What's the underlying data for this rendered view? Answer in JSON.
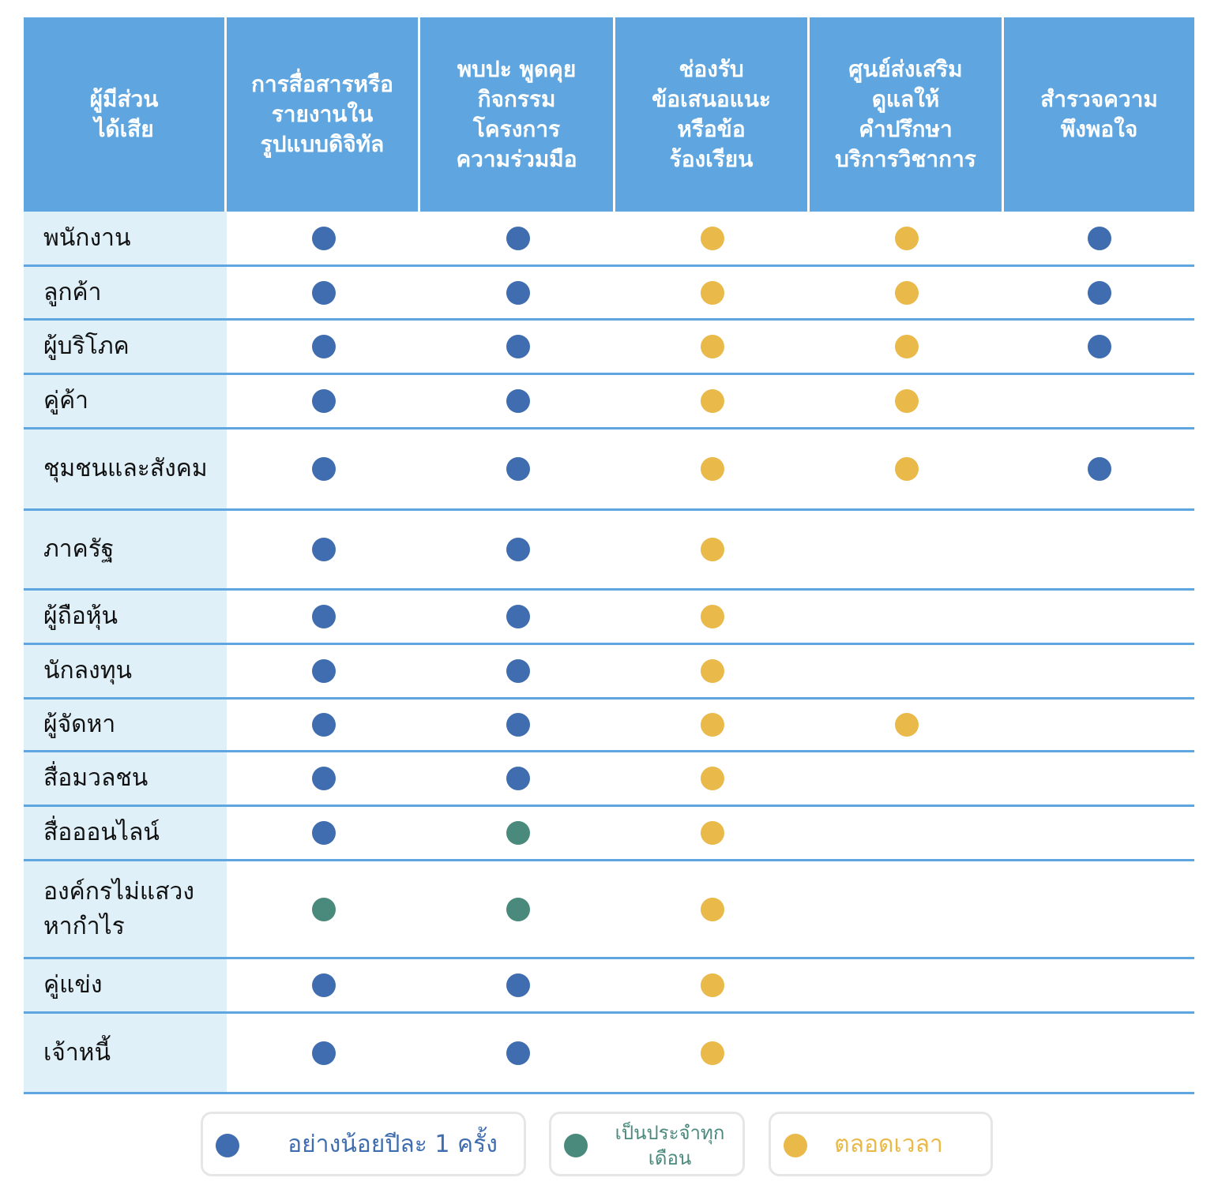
{
  "colors": {
    "header_bg": "#5fa5df",
    "label_bg": "#e0f0f8",
    "annual": "#3f6db0",
    "monthly": "#4a8a7c",
    "always": "#e9b949"
  },
  "headers": [
    "ผู้มีส่วน\nได้เสีย",
    "การสื่อสารหรือ\nรายงานใน\nรูปแบบดิจิทัล",
    "พบปะ พูดคุย\nกิจกรรม\nโครงการ\nความร่วมมือ",
    "ช่องรับ\nข้อเสนอแนะ\nหรือข้อ\nร้องเรียน",
    "ศูนย์ส่งเสริม\nดูแลให้\nคำปรึกษา\nบริการวิชาการ",
    "สำรวจความ\nพึงพอใจ"
  ],
  "rows": [
    {
      "label": "พนักงาน",
      "cells": [
        "annual",
        "annual",
        "always",
        "always",
        "annual"
      ]
    },
    {
      "label": "ลูกค้า",
      "cells": [
        "annual",
        "annual",
        "always",
        "always",
        "annual"
      ]
    },
    {
      "label": "ผู้บริโภค",
      "cells": [
        "annual",
        "annual",
        "always",
        "always",
        "annual"
      ]
    },
    {
      "label": "คู่ค้า",
      "cells": [
        "annual",
        "annual",
        "always",
        "always",
        ""
      ]
    },
    {
      "label": "ชุมชนและสังคม",
      "cells": [
        "annual",
        "annual",
        "always",
        "always",
        "annual"
      ]
    },
    {
      "label": "ภาครัฐ",
      "cells": [
        "annual",
        "annual",
        "always",
        "",
        ""
      ]
    },
    {
      "label": "ผู้ถือหุ้น",
      "cells": [
        "annual",
        "annual",
        "always",
        "",
        ""
      ]
    },
    {
      "label": "นักลงทุน",
      "cells": [
        "annual",
        "annual",
        "always",
        "",
        ""
      ]
    },
    {
      "label": "ผู้จัดหา",
      "cells": [
        "annual",
        "annual",
        "always",
        "always",
        ""
      ]
    },
    {
      "label": "สื่อมวลชน",
      "cells": [
        "annual",
        "annual",
        "always",
        "",
        ""
      ]
    },
    {
      "label": "สื่อออนไลน์",
      "cells": [
        "annual",
        "monthly",
        "always",
        "",
        ""
      ]
    },
    {
      "label": "องค์กรไม่แสวง\nหากำไร",
      "cells": [
        "monthly",
        "monthly",
        "always",
        "",
        ""
      ]
    },
    {
      "label": "คู่แข่ง",
      "cells": [
        "annual",
        "annual",
        "always",
        "",
        ""
      ]
    },
    {
      "label": "เจ้าหนี้",
      "cells": [
        "annual",
        "annual",
        "always",
        "",
        ""
      ]
    }
  ],
  "legend": [
    {
      "key": "annual",
      "label": "อย่างน้อยปีละ 1 ครั้ง"
    },
    {
      "key": "monthly",
      "label": "เป็นประจำทุก\nเดือน"
    },
    {
      "key": "always",
      "label": "ตลอดเวลา"
    }
  ]
}
